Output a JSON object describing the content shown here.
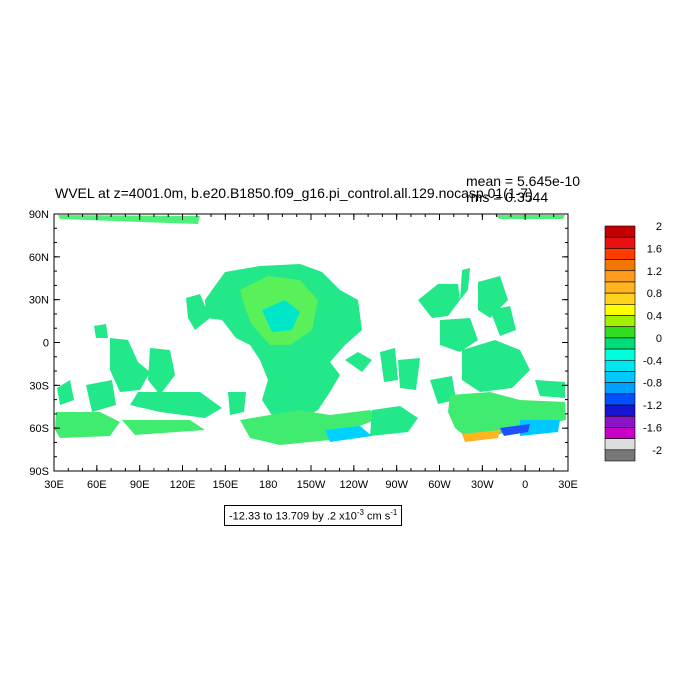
{
  "title": "WVEL at z=4001.0m, b.e20.B1850.f09_g16.pi_control.all.129.nocasp.01(1-7)",
  "stats": {
    "mean": "mean = 5.645e-10",
    "rms": "rms = 0.3544"
  },
  "axes": {
    "lon_ticks": [
      "30E",
      "60E",
      "90E",
      "120E",
      "150E",
      "180",
      "150W",
      "120W",
      "90W",
      "60W",
      "30W",
      "0",
      "30E"
    ],
    "lat_ticks": [
      "90N",
      "60N",
      "30N",
      "0",
      "30S",
      "60S",
      "90S"
    ]
  },
  "range_label": {
    "text": "-12.33 to 13.709 by .2 x10",
    "exponent": "-3",
    "units": " cm s",
    "units_exponent": "-1"
  },
  "colorbar": {
    "labels": [
      "2",
      "1.6",
      "1.2",
      "0.8",
      "0.4",
      "0",
      "-0.4",
      "-0.8",
      "-1.2",
      "-1.6",
      "-2"
    ],
    "colors": [
      "#c40000",
      "#e81010",
      "#ff3c00",
      "#f07800",
      "#ff9a1e",
      "#ffb420",
      "#ffd21e",
      "#ffff00",
      "#a0f000",
      "#32dc1e",
      "#00dc78",
      "#00ffdc",
      "#00e6f0",
      "#00c8ff",
      "#00a0ff",
      "#0050ff",
      "#1414d2",
      "#8c14c8",
      "#c800c8",
      "#dcdcdc",
      "#787878"
    ]
  }
}
